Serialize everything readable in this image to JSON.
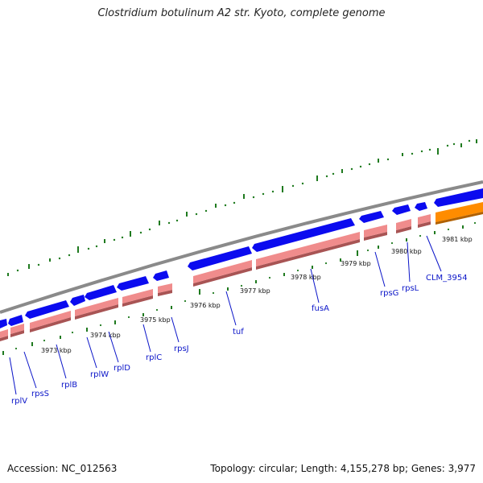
{
  "title": "Clostridium botulinum A2 str. Kyoto, complete genome",
  "footer": {
    "accession": "Accession: NC_012563",
    "summary": "Topology: circular; Length: 4,155,278 bp; Genes: 3,977"
  },
  "colors": {
    "cds_forward": "#0b0bef",
    "rna_track": "#f08c8c",
    "rna_shadow": "#a85454",
    "highlight_gene": "#ff8c00",
    "backbone": "#8a8a8a",
    "gc_ticks": "#1f7a1f",
    "gene_label": "#0a14c8"
  },
  "tick_labels": [
    "3973 kbp",
    "3974 kbp",
    "3975 kbp",
    "3976 kbp",
    "3977 kbp",
    "3978 kbp",
    "3979 kbp",
    "3980 kbp",
    "3981 kbp"
  ],
  "gene_labels": [
    "rplV",
    "rpsS",
    "rplB",
    "rplW",
    "rplD",
    "rplC",
    "rpsJ",
    "tuf",
    "fusA",
    "rpsG",
    "rpsL",
    "CLM_3954"
  ]
}
